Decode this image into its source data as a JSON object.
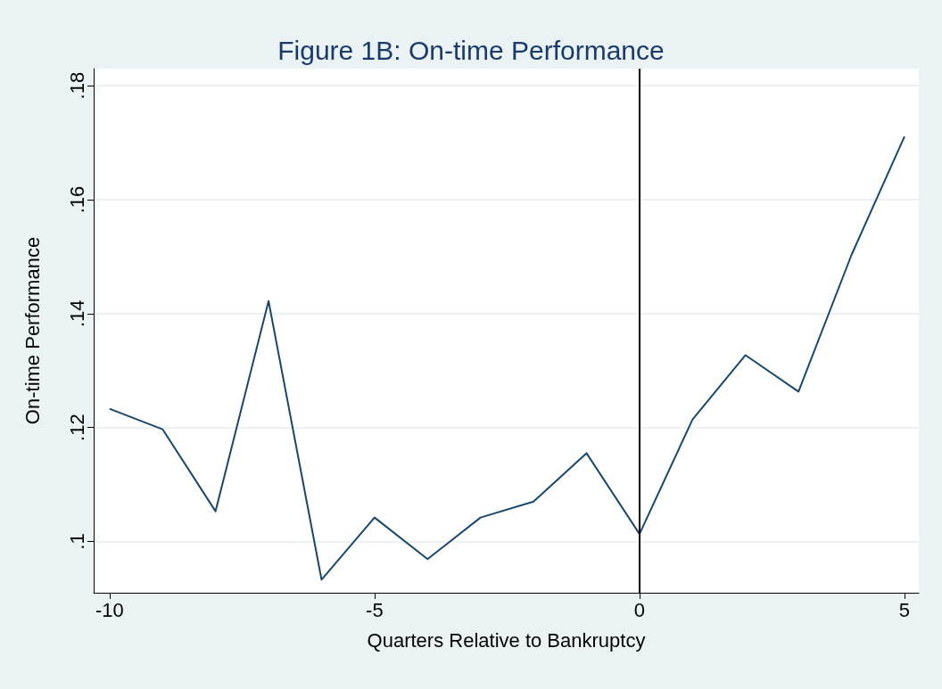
{
  "chart_data": {
    "type": "line",
    "title": "Figure 1B: On-time Performance",
    "xlabel": "Quarters Relative to Bankruptcy",
    "ylabel": "On-time Performance",
    "x": [
      -10,
      -9,
      -8,
      -7,
      -6,
      -5,
      -4,
      -3,
      -2,
      -1,
      0,
      1,
      2,
      3,
      4,
      5
    ],
    "series": [
      {
        "color": "#1a476f",
        "values": [
          0.1233,
          0.1197,
          0.1053,
          0.1422,
          0.0933,
          0.1042,
          0.0969,
          0.1042,
          0.107,
          0.1155,
          0.1013,
          0.1214,
          0.1327,
          0.1263,
          0.1503,
          0.1711
        ]
      }
    ],
    "xlim": [
      -10.3,
      5.27
    ],
    "xticks": [
      -10,
      -5,
      0,
      5
    ],
    "ylim": [
      0.091,
      0.183
    ],
    "yticks": [
      {
        "value": 0.1,
        "label": ".1"
      },
      {
        "value": 0.12,
        "label": ".12"
      },
      {
        "value": 0.14,
        "label": ".14"
      },
      {
        "value": 0.16,
        "label": ".16"
      },
      {
        "value": 0.18,
        "label": ".18"
      }
    ],
    "ref_lines": [
      {
        "axis": "x",
        "value": 0,
        "color": "#000000"
      }
    ],
    "grid": "y",
    "marker": "none"
  }
}
